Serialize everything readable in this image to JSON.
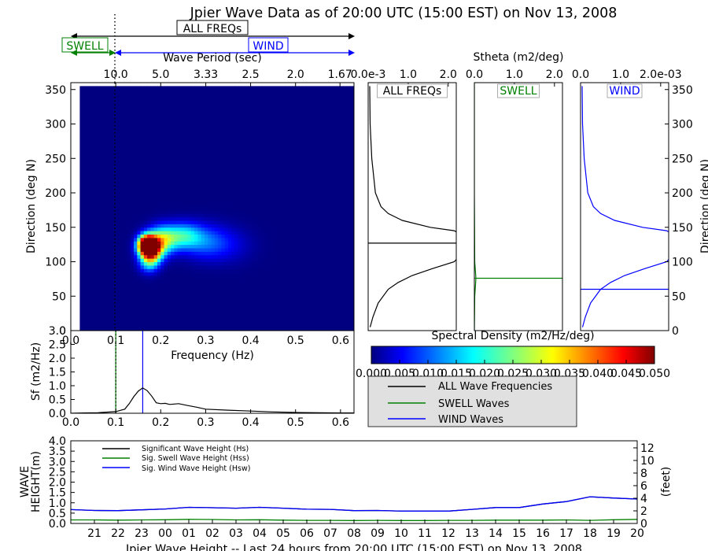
{
  "title": "Jpier Wave Data as of 20:00 UTC (15:00 EST) on Nov 13, 2008",
  "band_labels": {
    "all": "ALL FREQs",
    "swell": "SWELL",
    "wind": "WIND"
  },
  "colors": {
    "all": "#000000",
    "swell": "#008000",
    "wind": "#0000ff"
  },
  "chart_data": [
    {
      "id": "directional_spectrum",
      "type": "heatmap",
      "xlabel": "Frequency (Hz)",
      "ylabel": "Direction (deg N)",
      "top_xlabel": "Wave Period (sec)",
      "xlim": [
        0.0,
        0.63
      ],
      "ylim": [
        0,
        360
      ],
      "x_ticks": [
        "0.0",
        "0.1",
        "0.2",
        "0.3",
        "0.4",
        "0.5",
        "0.6"
      ],
      "y_ticks": [
        "0",
        "50",
        "100",
        "150",
        "200",
        "250",
        "300",
        "350"
      ],
      "top_ticks": [
        "10.0",
        "5.0",
        "3.33",
        "2.5",
        "2.0",
        "1.67"
      ],
      "swell_wind_split_hz": 0.1,
      "peak_frequency_hz": 0.16,
      "peak_direction_deg": 120,
      "zmax": 0.05,
      "energy_blobs": [
        {
          "f": 0.165,
          "d": 125,
          "amp": 0.055,
          "sf": 0.013,
          "sd": 9
        },
        {
          "f": 0.175,
          "d": 118,
          "amp": 0.045,
          "sf": 0.017,
          "sd": 13
        },
        {
          "f": 0.2,
          "d": 132,
          "amp": 0.023,
          "sf": 0.022,
          "sd": 14
        },
        {
          "f": 0.245,
          "d": 138,
          "amp": 0.017,
          "sf": 0.028,
          "sd": 13
        },
        {
          "f": 0.29,
          "d": 130,
          "amp": 0.009,
          "sf": 0.035,
          "sd": 17
        },
        {
          "f": 0.34,
          "d": 125,
          "amp": 0.005,
          "sf": 0.04,
          "sd": 18
        },
        {
          "f": 0.17,
          "d": 98,
          "amp": 0.012,
          "sf": 0.015,
          "sd": 10
        }
      ]
    },
    {
      "id": "colorbar",
      "type": "heatmap",
      "title": "Spectral Density (m2/Hz/deg)",
      "range": [
        0.0,
        0.05
      ],
      "ticks": [
        "0.000",
        "0.005",
        "0.010",
        "0.015",
        "0.020",
        "0.025",
        "0.030",
        "0.035",
        "0.040",
        "0.045",
        "0.050"
      ]
    },
    {
      "id": "stheta_all",
      "type": "line",
      "label": "ALL FREQs",
      "xlim": [
        0,
        2.2
      ],
      "ylim": [
        0,
        360
      ],
      "x_ticks": [
        "0.0e-3",
        "1.0",
        "2.0"
      ],
      "mean_direction_deg": 127,
      "direction": [
        5,
        20,
        40,
        60,
        70,
        80,
        90,
        100,
        110,
        120,
        126,
        130,
        140,
        145,
        150,
        160,
        170,
        180,
        200,
        250,
        300,
        355
      ],
      "stheta": [
        0.05,
        0.12,
        0.25,
        0.5,
        0.75,
        1.1,
        1.6,
        2.15,
        2.3,
        2.3,
        2.3,
        2.3,
        2.3,
        2.15,
        1.55,
        0.85,
        0.5,
        0.32,
        0.18,
        0.09,
        0.05,
        0.04
      ]
    },
    {
      "id": "stheta_swell",
      "type": "line",
      "label": "SWELL",
      "top_label": "Stheta (m2/deg)",
      "xlim": [
        0,
        2.2
      ],
      "ylim": [
        0,
        360
      ],
      "x_ticks": [
        "0.0",
        "1.0",
        "2.0"
      ],
      "mean_direction_deg": 76,
      "direction": [
        0,
        50,
        76,
        100,
        200,
        360
      ],
      "stheta": [
        0.0,
        0.01,
        0.04,
        0.01,
        0.0,
        0.0
      ]
    },
    {
      "id": "stheta_wind",
      "type": "line",
      "label": "WIND",
      "xlim": [
        0,
        2.2
      ],
      "ylim": [
        0,
        360
      ],
      "x_ticks": [
        "0.0",
        "1.0",
        "2.0e-03"
      ],
      "right_ylabel": "Direction (deg N)",
      "right_ticks": [
        "0",
        "50",
        "100",
        "150",
        "200",
        "250",
        "300",
        "350"
      ],
      "mean_direction_deg": 60,
      "direction": [
        5,
        20,
        40,
        60,
        70,
        80,
        90,
        100,
        110,
        120,
        126,
        130,
        140,
        145,
        150,
        160,
        170,
        180,
        200,
        250,
        300,
        355
      ],
      "stheta": [
        0.05,
        0.12,
        0.25,
        0.5,
        0.75,
        1.1,
        1.6,
        2.15,
        2.3,
        2.3,
        2.3,
        2.3,
        2.3,
        2.15,
        1.55,
        0.85,
        0.5,
        0.32,
        0.18,
        0.09,
        0.05,
        0.04
      ]
    },
    {
      "id": "frequency_spectrum",
      "type": "line",
      "xlabel": "Frequency (Hz)",
      "ylabel": "Sf (m2/Hz)",
      "xlim": [
        0.0,
        0.63
      ],
      "ylim": [
        0.0,
        3.0
      ],
      "x_ticks": [
        "0.0",
        "0.1",
        "0.2",
        "0.3",
        "0.4",
        "0.5",
        "0.6"
      ],
      "y_ticks": [
        "0.0",
        "0.5",
        "1.0",
        "1.5",
        "2.0",
        "2.5",
        "3.0"
      ],
      "swell_cutoff_hz": 0.1,
      "peak_frequency_hz": 0.16,
      "frequency": [
        0.0,
        0.03,
        0.06,
        0.08,
        0.1,
        0.12,
        0.13,
        0.14,
        0.15,
        0.16,
        0.17,
        0.18,
        0.19,
        0.2,
        0.21,
        0.22,
        0.24,
        0.26,
        0.28,
        0.3,
        0.35,
        0.4,
        0.45,
        0.5,
        0.55,
        0.6,
        0.63
      ],
      "sf": [
        0.0,
        0.01,
        0.02,
        0.04,
        0.06,
        0.15,
        0.35,
        0.6,
        0.8,
        0.92,
        0.82,
        0.62,
        0.38,
        0.35,
        0.36,
        0.32,
        0.35,
        0.28,
        0.22,
        0.15,
        0.11,
        0.08,
        0.05,
        0.03,
        0.02,
        0.01,
        0.01
      ],
      "legend": [
        "ALL Wave Frequencies",
        "SWELL Waves",
        "WIND Waves"
      ]
    },
    {
      "id": "wave_height_24h",
      "type": "line",
      "ylabel": "WAVE HEIGHT(m)",
      "right_ylabel": "(feet)",
      "title": "Jpier Wave Height -- Last 24 hours from 20:00 UTC (15:00 EST) on Nov 13, 2008",
      "ylim": [
        0.0,
        4.0
      ],
      "y_ticks": [
        "0.0",
        "0.5",
        "1.0",
        "1.5",
        "2.0",
        "2.5",
        "3.0",
        "3.5",
        "4.0"
      ],
      "right_ticks": [
        "0",
        "2",
        "4",
        "6",
        "8",
        "10",
        "12"
      ],
      "right_max_ft": 13.12,
      "hours": [
        "21",
        "22",
        "23",
        "00",
        "01",
        "02",
        "03",
        "04",
        "05",
        "06",
        "07",
        "08",
        "09",
        "10",
        "11",
        "12",
        "13",
        "14",
        "15",
        "16",
        "17",
        "18",
        "19",
        "20"
      ],
      "legend": [
        "Significant Wave Height (Hs)",
        "Sig. Swell Wave Height (Hss)",
        "Sig. Wind Wave Height (Hsw)"
      ],
      "series": [
        {
          "name": "Significant Wave Height (Hs)",
          "color": "#000000",
          "x": [
            20.0,
            21,
            22,
            23,
            24,
            25,
            26,
            27,
            28,
            29,
            30,
            31,
            32,
            33,
            34,
            35,
            36,
            37,
            38,
            39,
            40,
            41,
            42,
            43,
            44
          ],
          "values": [
            0.67,
            0.63,
            0.62,
            0.66,
            0.7,
            0.78,
            0.76,
            0.74,
            0.78,
            0.74,
            0.69,
            0.68,
            0.62,
            0.63,
            0.6,
            0.6,
            0.6,
            0.68,
            0.77,
            0.77,
            0.94,
            1.06,
            1.29,
            1.23,
            1.18
          ]
        },
        {
          "name": "Sig. Swell Wave Height (Hss)",
          "color": "#008000",
          "x": [
            20.0,
            21,
            22,
            23,
            24,
            25,
            26,
            27,
            28,
            29,
            30,
            31,
            32,
            33,
            34,
            35,
            36,
            37,
            38,
            39,
            40,
            41,
            42,
            43,
            44
          ],
          "values": [
            0.17,
            0.17,
            0.16,
            0.17,
            0.18,
            0.2,
            0.19,
            0.17,
            0.18,
            0.16,
            0.15,
            0.15,
            0.14,
            0.15,
            0.14,
            0.14,
            0.15,
            0.15,
            0.16,
            0.16,
            0.16,
            0.17,
            0.15,
            0.18,
            0.2
          ]
        },
        {
          "name": "Sig. Wind Wave Height (Hsw)",
          "color": "#0000ff",
          "x": [
            20.0,
            21,
            22,
            23,
            24,
            25,
            26,
            27,
            28,
            29,
            30,
            31,
            32,
            33,
            34,
            35,
            36,
            37,
            38,
            39,
            40,
            41,
            42,
            43,
            44
          ],
          "values": [
            0.67,
            0.63,
            0.62,
            0.66,
            0.7,
            0.78,
            0.76,
            0.74,
            0.78,
            0.74,
            0.69,
            0.68,
            0.62,
            0.63,
            0.6,
            0.6,
            0.6,
            0.68,
            0.77,
            0.77,
            0.94,
            1.06,
            1.29,
            1.23,
            1.18
          ]
        }
      ]
    }
  ]
}
